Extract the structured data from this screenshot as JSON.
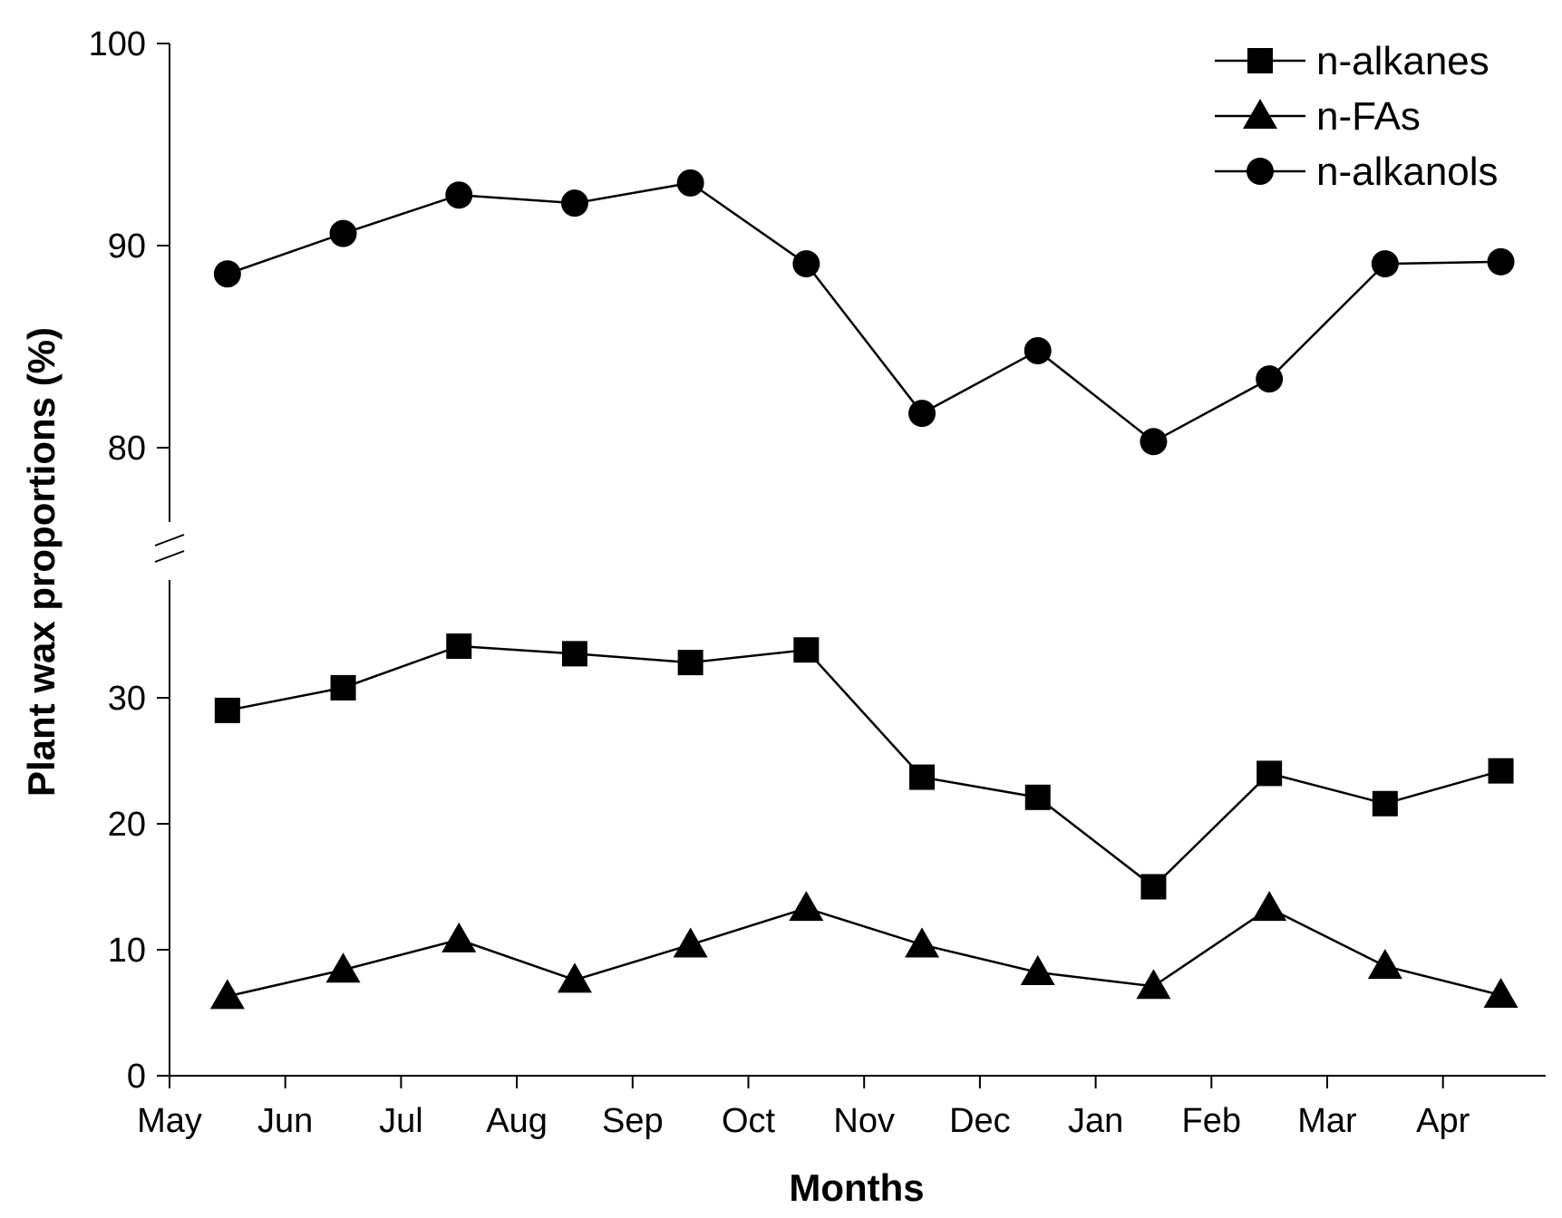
{
  "chart_data": {
    "type": "line",
    "title": "",
    "xlabel": "Months",
    "ylabel": "Plant wax proportions (%)",
    "month_ticks": [
      "May",
      "Jun",
      "Jul",
      "Aug",
      "Sep",
      "Oct",
      "Nov",
      "Dec",
      "Jan",
      "Feb",
      "Mar",
      "Apr"
    ],
    "x_points": [
      "mid-May",
      "mid-Jun",
      "mid-Jul",
      "mid-Aug",
      "mid-Sep",
      "mid-Oct",
      "mid-Nov",
      "mid-Dec",
      "mid-Jan",
      "mid-Feb",
      "mid-Mar",
      "mid-Apr"
    ],
    "y_axis": {
      "broken": true,
      "lower_range": [
        0,
        37
      ],
      "upper_range": [
        75,
        100
      ],
      "ticks": [
        0,
        10,
        20,
        30,
        80,
        90,
        100
      ]
    },
    "series": [
      {
        "name": "n-alkanes",
        "marker": "square",
        "values": [
          29.0,
          30.8,
          34.1,
          33.5,
          32.8,
          33.8,
          23.7,
          22.1,
          15.0,
          24.0,
          21.6,
          24.2
        ]
      },
      {
        "name": "n-FAs",
        "marker": "triangle",
        "values": [
          6.3,
          8.4,
          10.8,
          7.6,
          10.4,
          13.3,
          10.4,
          8.2,
          7.1,
          13.3,
          8.7,
          6.4
        ]
      },
      {
        "name": "n-alkanols",
        "marker": "circle",
        "values": [
          88.6,
          90.6,
          92.5,
          92.1,
          93.1,
          89.1,
          81.7,
          84.8,
          80.3,
          83.4,
          89.1,
          89.2
        ]
      }
    ],
    "legend_position": "top-right",
    "grid": false
  }
}
